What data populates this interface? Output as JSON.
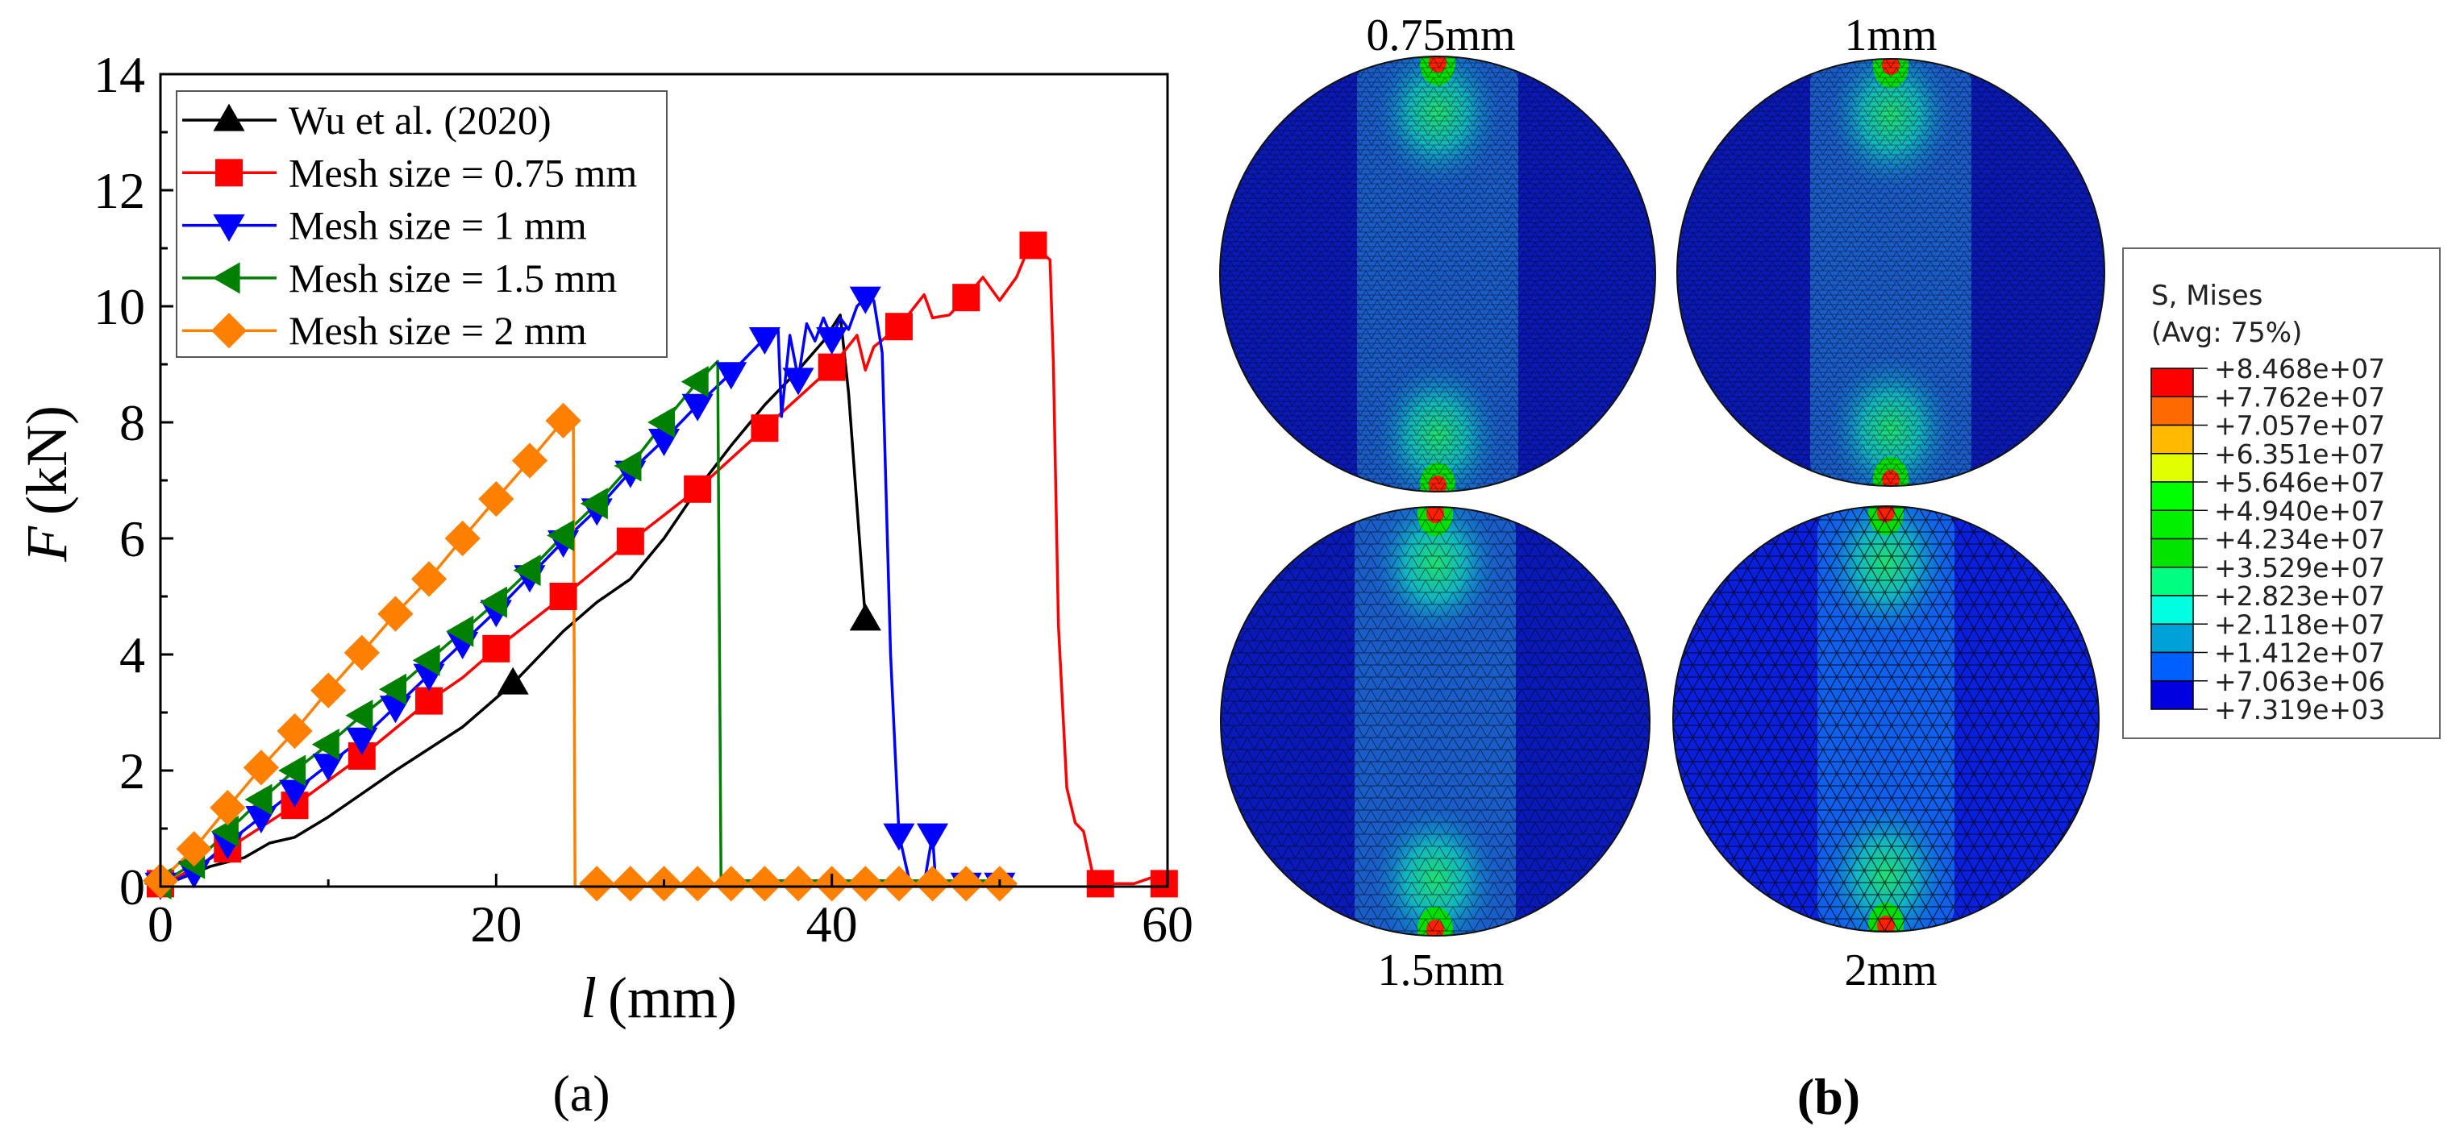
{
  "chart_data": [
    {
      "type": "line",
      "panel_label": "(a)",
      "xlabel_var": "l",
      "xlabel_unit": "(mm)",
      "ylabel_var": "F",
      "ylabel_unit": "(kN)",
      "xlim": [
        0,
        60
      ],
      "ylim": [
        0,
        14
      ],
      "xticks": [
        "0",
        "20",
        "40",
        "60"
      ],
      "yticks": [
        "0",
        "2",
        "4",
        "6",
        "8",
        "10",
        "12",
        "14"
      ],
      "grid": false,
      "legend_position": "top-left",
      "series": [
        {
          "name": "Wu et al. (2020)",
          "color": "#000000",
          "marker": "triangle-up",
          "points": [
            [
              0,
              0
            ],
            [
              3,
              0.35
            ],
            [
              5,
              0.5
            ],
            [
              6.5,
              0.75
            ],
            [
              8,
              0.85
            ],
            [
              10,
              1.2
            ],
            [
              12,
              1.6
            ],
            [
              14,
              2.0
            ],
            [
              18,
              2.75
            ],
            [
              21,
              3.5
            ],
            [
              24,
              4.4
            ],
            [
              26,
              4.9
            ],
            [
              28,
              5.3
            ],
            [
              30,
              6.0
            ],
            [
              32,
              6.85
            ],
            [
              34,
              7.6
            ],
            [
              36,
              8.3
            ],
            [
              38,
              8.9
            ],
            [
              39.5,
              9.4
            ],
            [
              40.5,
              9.85
            ],
            [
              41,
              8.5
            ],
            [
              42,
              4.6
            ]
          ],
          "markers": [
            [
              21,
              3.5
            ],
            [
              42,
              4.6
            ]
          ]
        },
        {
          "name": "Mesh size = 0.75 mm",
          "color": "#ff0000",
          "marker": "square",
          "points": [
            [
              0,
              0
            ],
            [
              4,
              0.65
            ],
            [
              8,
              1.4
            ],
            [
              12,
              2.25
            ],
            [
              16,
              3.2
            ],
            [
              18,
              3.6
            ],
            [
              20,
              4.1
            ],
            [
              24,
              5.0
            ],
            [
              28,
              5.95
            ],
            [
              32,
              6.85
            ],
            [
              36,
              7.9
            ],
            [
              40,
              8.95
            ],
            [
              41.5,
              9.5
            ],
            [
              42,
              8.9
            ],
            [
              42.5,
              9.3
            ],
            [
              44,
              9.65
            ],
            [
              45.5,
              10.2
            ],
            [
              46,
              9.8
            ],
            [
              47,
              9.85
            ],
            [
              48,
              10.15
            ],
            [
              49,
              10.5
            ],
            [
              50,
              10.1
            ],
            [
              51,
              10.5
            ],
            [
              51.5,
              10.85
            ],
            [
              52,
              11.05
            ],
            [
              53,
              10.8
            ],
            [
              53.2,
              9.0
            ],
            [
              53.5,
              4.5
            ],
            [
              54,
              1.7
            ],
            [
              54.5,
              1.1
            ],
            [
              55,
              0.95
            ],
            [
              55.7,
              0
            ],
            [
              56,
              0.05
            ],
            [
              58,
              0.05
            ],
            [
              59,
              0.15
            ],
            [
              60,
              0.05
            ]
          ],
          "markers": [
            [
              0,
              0.05
            ],
            [
              4,
              0.65
            ],
            [
              8,
              1.4
            ],
            [
              12,
              2.25
            ],
            [
              16,
              3.2
            ],
            [
              20,
              4.1
            ],
            [
              24,
              5.0
            ],
            [
              28,
              5.95
            ],
            [
              32,
              6.85
            ],
            [
              36,
              7.9
            ],
            [
              40,
              8.95
            ],
            [
              44,
              9.65
            ],
            [
              48,
              10.15
            ],
            [
              52,
              11.05
            ],
            [
              56,
              0.05
            ],
            [
              59.8,
              0.05
            ]
          ]
        },
        {
          "name": "Mesh size = 1 mm",
          "color": "#0000ff",
          "marker": "triangle-down",
          "points": [
            [
              0,
              0
            ],
            [
              2,
              0.25
            ],
            [
              4,
              0.75
            ],
            [
              6,
              1.2
            ],
            [
              8,
              1.65
            ],
            [
              10,
              2.1
            ],
            [
              12,
              2.55
            ],
            [
              14,
              3.1
            ],
            [
              16,
              3.65
            ],
            [
              18,
              4.2
            ],
            [
              20,
              4.75
            ],
            [
              22,
              5.35
            ],
            [
              24,
              5.95
            ],
            [
              26,
              6.5
            ],
            [
              28,
              7.15
            ],
            [
              30,
              7.7
            ],
            [
              32,
              8.3
            ],
            [
              34,
              8.85
            ],
            [
              36,
              9.45
            ],
            [
              36.8,
              9.6
            ],
            [
              37,
              8.1
            ],
            [
              37.5,
              9.5
            ],
            [
              38,
              8.75
            ],
            [
              38.5,
              9.7
            ],
            [
              39,
              9.4
            ],
            [
              39.5,
              9.8
            ],
            [
              40,
              9.45
            ],
            [
              40.5,
              9.8
            ],
            [
              41,
              9.6
            ],
            [
              41.5,
              10.0
            ],
            [
              42,
              10.15
            ],
            [
              42.5,
              10.1
            ],
            [
              43,
              9.2
            ],
            [
              43.5,
              4.0
            ],
            [
              44,
              0.9
            ],
            [
              44.7,
              0
            ],
            [
              45.5,
              0.05
            ],
            [
              46,
              0.9
            ],
            [
              46.2,
              0
            ],
            [
              48,
              0.05
            ],
            [
              50,
              0.05
            ],
            [
              51,
              0.05
            ]
          ],
          "markers": [
            [
              0,
              0.05
            ],
            [
              2,
              0.25
            ],
            [
              4,
              0.75
            ],
            [
              6,
              1.2
            ],
            [
              8,
              1.65
            ],
            [
              10,
              2.1
            ],
            [
              12,
              2.55
            ],
            [
              14,
              3.1
            ],
            [
              16,
              3.65
            ],
            [
              18,
              4.2
            ],
            [
              20,
              4.75
            ],
            [
              22,
              5.35
            ],
            [
              24,
              5.95
            ],
            [
              26,
              6.5
            ],
            [
              28,
              7.15
            ],
            [
              30,
              7.7
            ],
            [
              32,
              8.3
            ],
            [
              34,
              8.85
            ],
            [
              36,
              9.45
            ],
            [
              38,
              8.75
            ],
            [
              40,
              9.45
            ],
            [
              42,
              10.15
            ],
            [
              44,
              0.9
            ],
            [
              46,
              0.9
            ],
            [
              48,
              0.05
            ],
            [
              50,
              0.05
            ]
          ]
        },
        {
          "name": "Mesh size = 1.5 mm",
          "color": "#008000",
          "marker": "triangle-left",
          "points": [
            [
              0,
              0.05
            ],
            [
              2,
              0.4
            ],
            [
              4,
              0.95
            ],
            [
              6,
              1.5
            ],
            [
              8,
              2.0
            ],
            [
              10,
              2.45
            ],
            [
              12,
              2.95
            ],
            [
              14,
              3.4
            ],
            [
              16,
              3.9
            ],
            [
              18,
              4.4
            ],
            [
              20,
              4.9
            ],
            [
              22,
              5.45
            ],
            [
              24,
              6.05
            ],
            [
              26,
              6.6
            ],
            [
              28,
              7.25
            ],
            [
              30,
              8.0
            ],
            [
              32,
              8.7
            ],
            [
              33.2,
              9.05
            ],
            [
              33.4,
              0
            ],
            [
              34,
              0.1
            ],
            [
              50,
              0.1
            ]
          ],
          "markers": [
            [
              0,
              0.05
            ],
            [
              2,
              0.4
            ],
            [
              4,
              0.95
            ],
            [
              6,
              1.5
            ],
            [
              8,
              2.0
            ],
            [
              10,
              2.45
            ],
            [
              12,
              2.95
            ],
            [
              14,
              3.4
            ],
            [
              16,
              3.9
            ],
            [
              18,
              4.4
            ],
            [
              20,
              4.9
            ],
            [
              22,
              5.45
            ],
            [
              24,
              6.05
            ],
            [
              26,
              6.6
            ],
            [
              28,
              7.25
            ],
            [
              30,
              8.0
            ],
            [
              32,
              8.7
            ]
          ]
        },
        {
          "name": "Mesh size = 2 mm",
          "color": "#ff8000",
          "marker": "diamond",
          "points": [
            [
              0,
              0.1
            ],
            [
              2,
              0.65
            ],
            [
              4,
              1.36
            ],
            [
              6,
              2.05
            ],
            [
              8,
              2.68
            ],
            [
              10,
              3.38
            ],
            [
              12,
              4.03
            ],
            [
              14,
              4.7
            ],
            [
              16,
              5.3
            ],
            [
              18,
              6.0
            ],
            [
              20,
              6.68
            ],
            [
              22,
              7.34
            ],
            [
              24,
              8.03
            ],
            [
              24.6,
              8.0
            ],
            [
              24.7,
              0
            ],
            [
              50,
              0
            ]
          ],
          "markers": [
            [
              0,
              0.1
            ],
            [
              2,
              0.65
            ],
            [
              4,
              1.36
            ],
            [
              6,
              2.05
            ],
            [
              8,
              2.68
            ],
            [
              10,
              3.38
            ],
            [
              12,
              4.03
            ],
            [
              14,
              4.7
            ],
            [
              16,
              5.3
            ],
            [
              18,
              6.0
            ],
            [
              20,
              6.68
            ],
            [
              22,
              7.34
            ],
            [
              24,
              8.03
            ],
            [
              26,
              0.05
            ],
            [
              28,
              0.05
            ],
            [
              30,
              0.05
            ],
            [
              32,
              0.05
            ],
            [
              34,
              0.05
            ],
            [
              36,
              0.05
            ],
            [
              38,
              0.05
            ],
            [
              40,
              0.05
            ],
            [
              42,
              0.05
            ],
            [
              44,
              0.05
            ],
            [
              46,
              0.05
            ],
            [
              48,
              0.05
            ],
            [
              50,
              0.05
            ]
          ]
        }
      ]
    },
    {
      "type": "heatmap",
      "panel_label": "(b)",
      "panels": [
        {
          "label": "0.75mm",
          "mesh": "fine"
        },
        {
          "label": "1mm",
          "mesh": "fine"
        },
        {
          "label": "1.5mm",
          "mesh": "medium"
        },
        {
          "label": "2mm",
          "mesh": "coarse"
        }
      ],
      "colorbar": {
        "title_line1": "S, Mises",
        "title_line2": "(Avg: 75%)",
        "levels": [
          "+8.468e+07",
          "+7.762e+07",
          "+7.057e+07",
          "+6.351e+07",
          "+5.646e+07",
          "+4.940e+07",
          "+4.234e+07",
          "+3.529e+07",
          "+2.823e+07",
          "+2.118e+07",
          "+1.412e+07",
          "+7.063e+06",
          "+7.319e+03"
        ],
        "colors": [
          "#ff0000",
          "#ff6a00",
          "#ffb900",
          "#e2ff00",
          "#00ff00",
          "#00f000",
          "#00e400",
          "#00ff80",
          "#00ffe0",
          "#00a0d8",
          "#0060ff",
          "#0000e0"
        ]
      }
    }
  ]
}
